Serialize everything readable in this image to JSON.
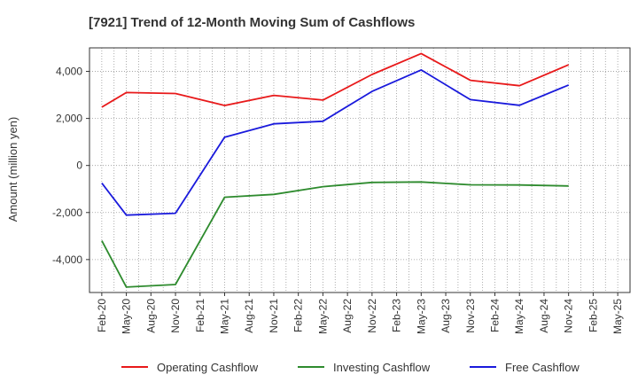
{
  "chart_data": {
    "type": "line",
    "title": "[7921]  Trend of 12-Month Moving Sum of Cashflows",
    "xlabel": "",
    "ylabel": "Amount (million yen)",
    "categories": [
      "Feb-20",
      "May-20",
      "Aug-20",
      "Nov-20",
      "Feb-21",
      "May-21",
      "Aug-21",
      "Nov-21",
      "Feb-22",
      "May-22",
      "Aug-22",
      "Nov-22",
      "Feb-23",
      "May-23",
      "Aug-23",
      "Nov-23",
      "Feb-24",
      "May-24",
      "Aug-24",
      "Nov-24",
      "Feb-25",
      "May-25"
    ],
    "ylim": [
      -5400,
      5000
    ],
    "yticks": [
      -4000,
      -2000,
      0,
      2000,
      4000
    ],
    "ytick_labels": [
      "-4,000",
      "-2,000",
      "0",
      "2,000",
      "4,000"
    ],
    "grid": true,
    "legend_position": "bottom",
    "series": [
      {
        "name": "Operating Cashflow",
        "color": "#e8191a",
        "points": [
          [
            0,
            2480
          ],
          [
            1,
            3100
          ],
          [
            3,
            3060
          ],
          [
            5,
            2550
          ],
          [
            7,
            2980
          ],
          [
            9,
            2780
          ],
          [
            11,
            3870
          ],
          [
            13,
            4760
          ],
          [
            15,
            3620
          ],
          [
            17,
            3390
          ],
          [
            19,
            4280
          ]
        ]
      },
      {
        "name": "Investing Cashflow",
        "color": "#2e8b2e",
        "points": [
          [
            0,
            -3200
          ],
          [
            1,
            -5170
          ],
          [
            3,
            -5060
          ],
          [
            5,
            -1350
          ],
          [
            7,
            -1230
          ],
          [
            9,
            -900
          ],
          [
            11,
            -720
          ],
          [
            13,
            -700
          ],
          [
            15,
            -820
          ],
          [
            17,
            -830
          ],
          [
            19,
            -870
          ]
        ]
      },
      {
        "name": "Free Cashflow",
        "color": "#1a1adc",
        "points": [
          [
            0,
            -750
          ],
          [
            1,
            -2110
          ],
          [
            3,
            -2030
          ],
          [
            5,
            1200
          ],
          [
            7,
            1770
          ],
          [
            9,
            1880
          ],
          [
            11,
            3150
          ],
          [
            13,
            4060
          ],
          [
            15,
            2800
          ],
          [
            17,
            2560
          ],
          [
            19,
            3420
          ]
        ]
      }
    ]
  }
}
